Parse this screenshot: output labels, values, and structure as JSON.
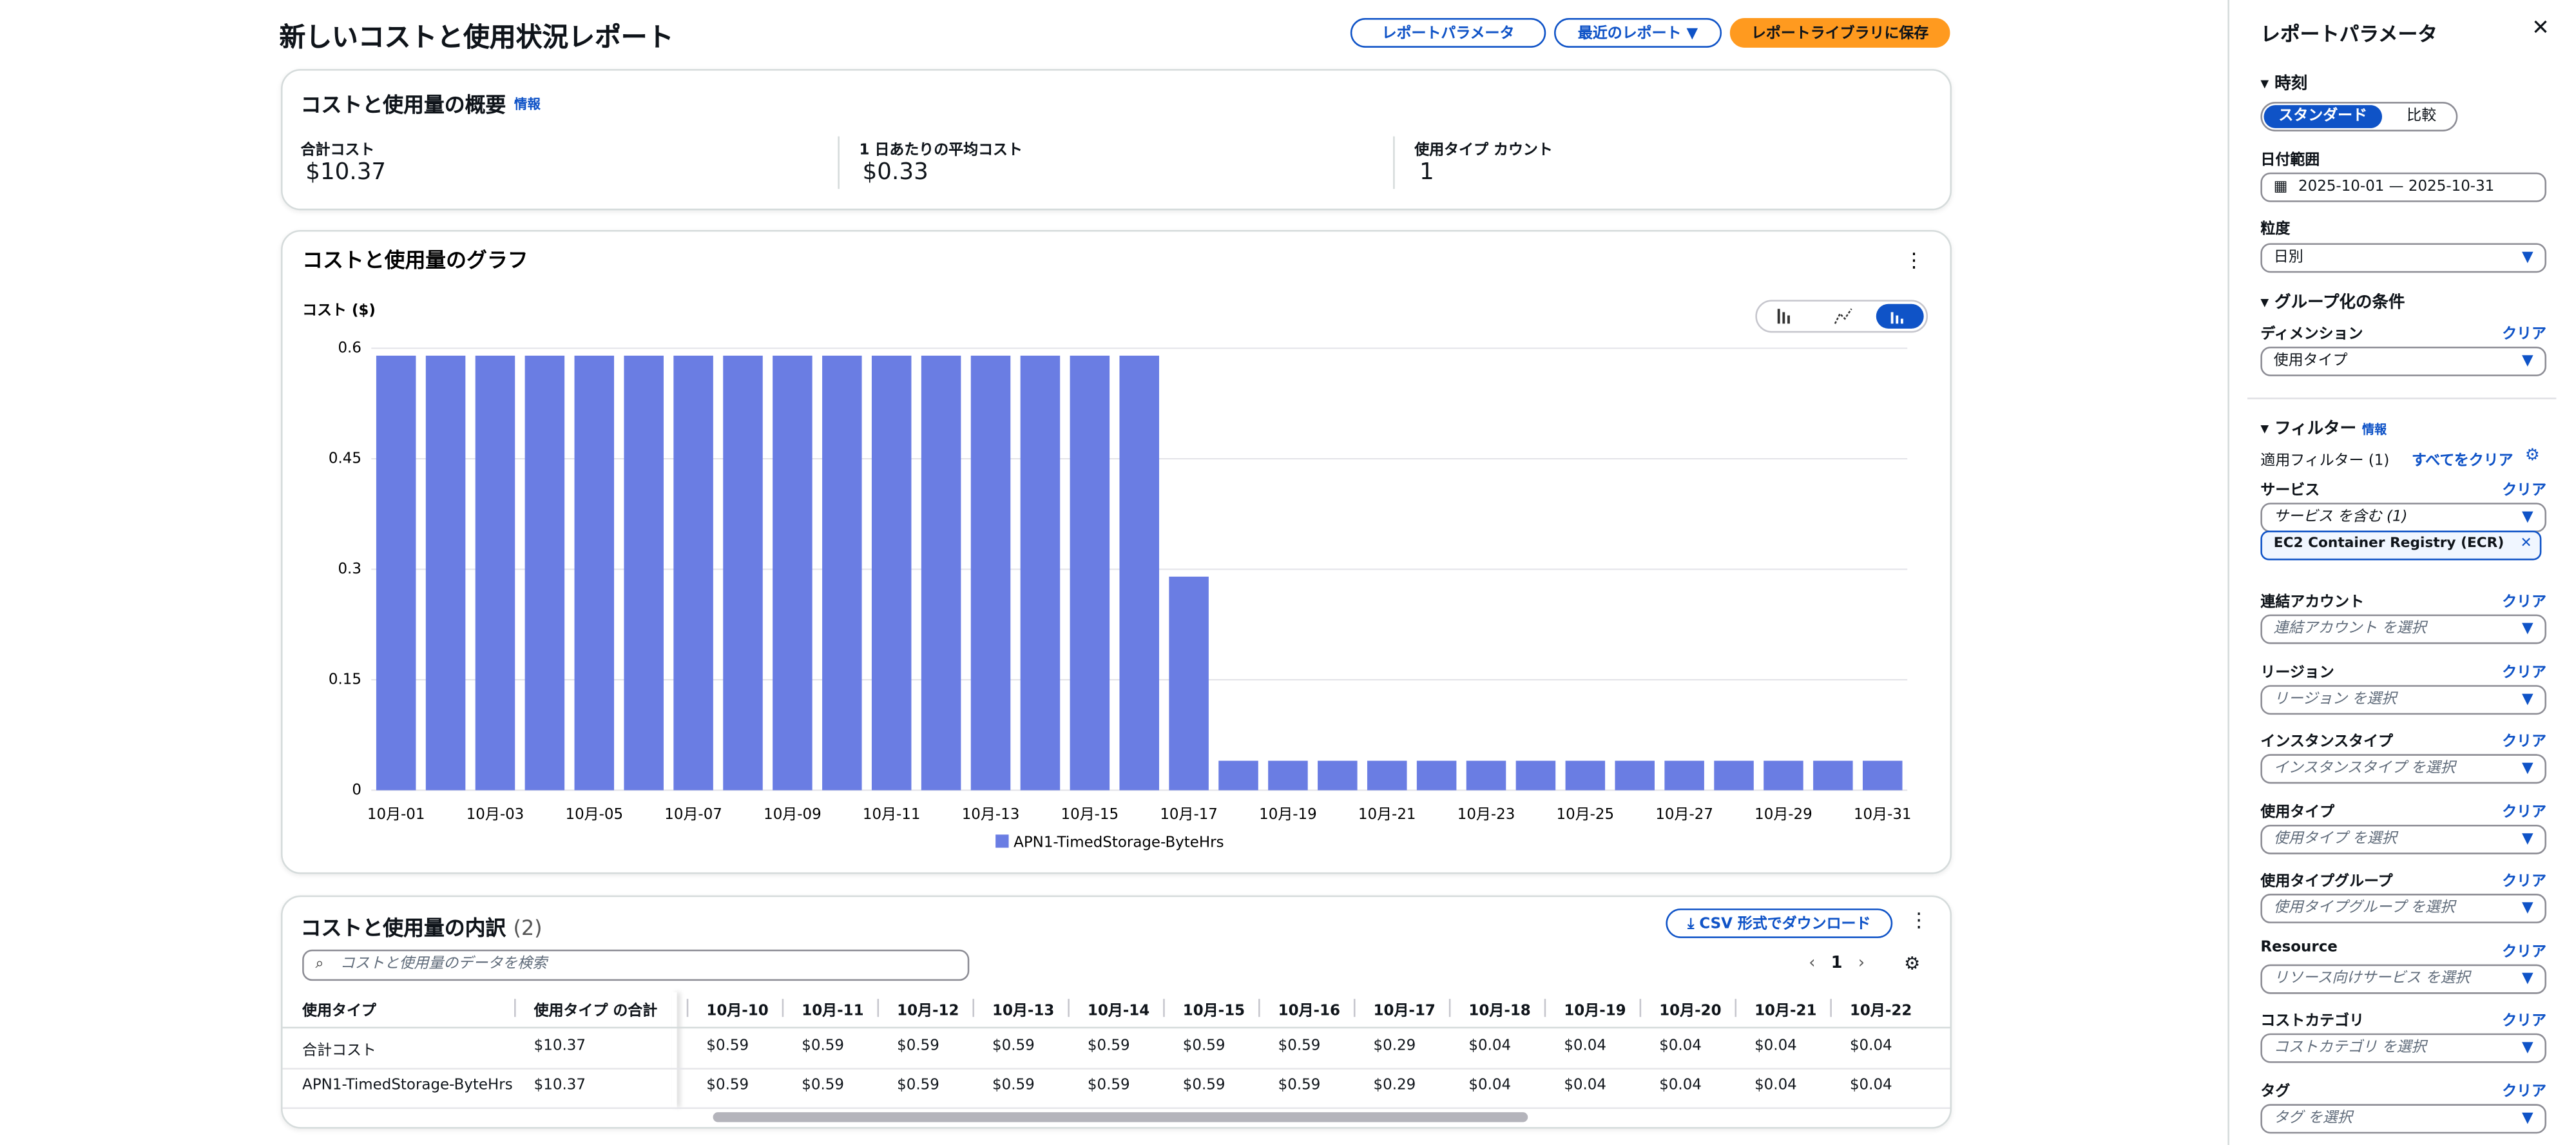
{
  "header": {
    "title": "新しいコストと使用状況レポート",
    "buttons": [
      "レポートパラメータ",
      "最近のレポート",
      "レポートライブラリに保存"
    ]
  },
  "summary": {
    "title": "コストと使用量の概要",
    "info": "情報",
    "metrics": [
      {
        "label": "合計コスト",
        "value": "$10.37"
      },
      {
        "label": "1 日あたりの平均コスト",
        "value": "$0.33"
      },
      {
        "label": "使用タイプ カウント",
        "value": "1"
      }
    ]
  },
  "chart_data": {
    "type": "bar",
    "title": "コストと使用量のグラフ",
    "y_label": "コスト ($)",
    "categories": [
      "10月-01",
      null,
      "10月-03",
      null,
      "10月-05",
      null,
      "10月-07",
      null,
      "10月-09",
      null,
      "10月-11",
      null,
      "10月-13",
      null,
      "10月-15",
      null,
      "10月-17",
      null,
      "10月-19",
      null,
      "10月-21",
      null,
      "10月-23",
      null,
      "10月-25",
      null,
      "10月-27",
      null,
      "10月-29",
      null,
      "10月-31"
    ],
    "series": [
      {
        "name": "APN1-TimedStorage-ByteHrs",
        "color": "#6a7de3",
        "values": [
          0.59,
          0.59,
          0.59,
          0.59,
          0.59,
          0.59,
          0.59,
          0.59,
          0.59,
          0.59,
          0.59,
          0.59,
          0.59,
          0.59,
          0.59,
          0.59,
          0.29,
          0.04,
          0.04,
          0.04,
          0.04,
          0.04,
          0.04,
          0.04,
          0.04,
          0.04,
          0.04,
          0.04,
          0.04,
          0.04,
          0.04
        ]
      }
    ],
    "ylim": [
      0,
      0.6
    ],
    "yticks": [
      0,
      0.15,
      0.3,
      0.45,
      0.6
    ],
    "grid": true
  },
  "breakdown": {
    "title": "コストと使用量の内訳",
    "count": "(2)",
    "download": "CSV 形式でダウンロード",
    "search_placeholder": "コストと使用量のデータを検索",
    "page": "1",
    "table": {
      "columns": [
        "使用タイプ",
        "使用タイプ の合計",
        "10月-10",
        "10月-11",
        "10月-12",
        "10月-13",
        "10月-14",
        "10月-15",
        "10月-16",
        "10月-17",
        "10月-18",
        "10月-19",
        "10月-20",
        "10月-21",
        "10月-22"
      ],
      "rows": [
        [
          "合計コスト",
          "$10.37",
          "$0.59",
          "$0.59",
          "$0.59",
          "$0.59",
          "$0.59",
          "$0.59",
          "$0.59",
          "$0.29",
          "$0.04",
          "$0.04",
          "$0.04",
          "$0.04",
          "$0.04"
        ],
        [
          "APN1-TimedStorage-ByteHrs",
          "$10.37",
          "$0.59",
          "$0.59",
          "$0.59",
          "$0.59",
          "$0.59",
          "$0.59",
          "$0.59",
          "$0.29",
          "$0.04",
          "$0.04",
          "$0.04",
          "$0.04",
          "$0.04"
        ]
      ]
    }
  },
  "panel": {
    "title": "レポートパラメータ",
    "time": "時刻",
    "modes": [
      "スタンダード",
      "比較"
    ],
    "date_label": "日付範囲",
    "date_value": "2025-10-01 — 2025-10-31",
    "granularity_label": "粒度",
    "granularity_value": "日別",
    "group": "グループ化の条件",
    "dimension_label": "ディメンション",
    "clear": "クリア",
    "dimension_value": "使用タイプ",
    "filter": "フィルター",
    "info": "情報",
    "applied": "適用フィルター (1)",
    "clear_all": "すべてをクリア",
    "filters": [
      {
        "label": "サービス",
        "placeholder": "サービス を含む (1)",
        "token": "EC2 Container Registry (ECR)"
      },
      {
        "label": "連結アカウント",
        "placeholder": "連結アカウント を選択"
      },
      {
        "label": "リージョン",
        "placeholder": "リージョン を選択"
      },
      {
        "label": "インスタンスタイプ",
        "placeholder": "インスタンスタイプ を選択"
      },
      {
        "label": "使用タイプ",
        "placeholder": "使用タイプ を選択"
      },
      {
        "label": "使用タイプグループ",
        "placeholder": "使用タイプグループ を選択"
      },
      {
        "label": "Resource",
        "placeholder": "リソース向けサービス を選択"
      },
      {
        "label": "コストカテゴリ",
        "placeholder": "コストカテゴリ を選択"
      },
      {
        "label": "タグ",
        "placeholder": "タグ を選択"
      }
    ]
  }
}
